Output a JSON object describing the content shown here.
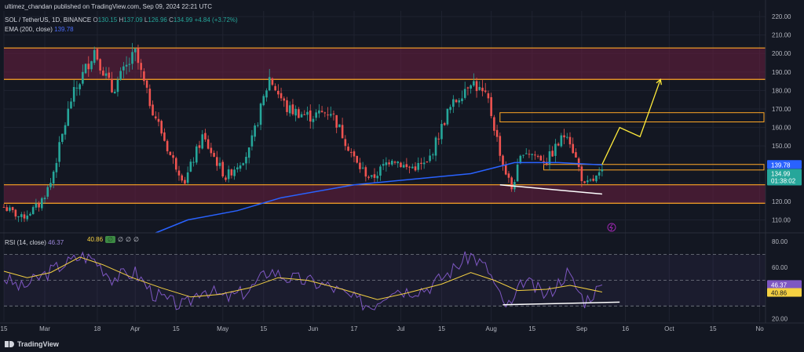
{
  "header": {
    "publisher": "ultimez_chandan published on TradingView.com, Sep 09, 2024 22:21 UTC",
    "symbol": "SOL / TetherUS, 1D, BINANCE",
    "ohlc": {
      "o_label": "O",
      "o": "130.15",
      "h_label": "H",
      "h": "137.09",
      "l_label": "L",
      "l": "126.96",
      "c_label": "C",
      "c": "134.99",
      "change": "+4.84 (+3.72%)"
    },
    "ema_label": "EMA (200, close)",
    "ema_value": "139.78",
    "rsi_label": "RSI (14, close)",
    "rsi_value": "46.37",
    "rsi_ma_value": "40.86",
    "rsi_flags": [
      "∅",
      "∅",
      "∅",
      "∅"
    ]
  },
  "footer": {
    "brand": "TradingView"
  },
  "colors": {
    "background": "#131722",
    "up": "#26a69a",
    "down": "#ef5350",
    "ema": "#2962ff",
    "zone_fill": "#6b1f3f",
    "zone_line": "#ffa726",
    "rsi": "#7e57c2",
    "rsi_ma": "#f5d142",
    "projection": "#ffeb3b",
    "trendline": "#ffffff"
  },
  "chart_data": {
    "type": "candlestick",
    "price_axis": {
      "ticks": [
        "220.00",
        "210.00",
        "200.00",
        "190.00",
        "180.00",
        "170.00",
        "160.00",
        "150.00",
        "140.00",
        "130.00",
        "120.00",
        "110.00"
      ],
      "ylim": [
        103,
        223
      ],
      "ema_label": "139.78",
      "price_label": "134.99",
      "countdown": "01:38:02"
    },
    "rsi_axis": {
      "ticks": [
        "80.00",
        "60.00",
        "20.00"
      ],
      "ylim": [
        18,
        85
      ],
      "rsi_label": "46.37",
      "ma_label": "40.86",
      "upper_band": 70,
      "middle_band": 50,
      "lower_band": 30
    },
    "x_axis": {
      "ticks": [
        "15",
        "Mar",
        "18",
        "Apr",
        "15",
        "May",
        "15",
        "Jun",
        "17",
        "Jul",
        "15",
        "Aug",
        "15",
        "Sep",
        "16",
        "Oct",
        "15",
        "No"
      ],
      "tick_days": [
        0,
        14,
        32,
        45,
        59,
        75,
        89,
        106,
        120,
        136,
        150,
        167,
        181,
        198,
        213,
        228,
        243,
        259
      ]
    },
    "zones": [
      {
        "low": 186,
        "high": 203
      },
      {
        "low": 119,
        "high": 129
      },
      {
        "low": 163,
        "high": 168,
        "start_day": 170,
        "border_only": true
      },
      {
        "low": 137,
        "high": 140,
        "start_day": 185,
        "border_only": true
      }
    ],
    "key_points": [
      {
        "day": 0,
        "value": 117
      },
      {
        "day": 6,
        "value": 111
      },
      {
        "day": 12,
        "value": 118
      },
      {
        "day": 16,
        "value": 130
      },
      {
        "day": 23,
        "value": 175
      },
      {
        "day": 31,
        "value": 202
      },
      {
        "day": 37,
        "value": 180
      },
      {
        "day": 45,
        "value": 200
      },
      {
        "day": 49,
        "value": 178
      },
      {
        "day": 57,
        "value": 145
      },
      {
        "day": 62,
        "value": 131
      },
      {
        "day": 68,
        "value": 155
      },
      {
        "day": 76,
        "value": 133
      },
      {
        "day": 84,
        "value": 147
      },
      {
        "day": 91,
        "value": 187
      },
      {
        "day": 97,
        "value": 170
      },
      {
        "day": 105,
        "value": 166
      },
      {
        "day": 112,
        "value": 169
      },
      {
        "day": 121,
        "value": 140
      },
      {
        "day": 126,
        "value": 132
      },
      {
        "day": 133,
        "value": 144
      },
      {
        "day": 138,
        "value": 138
      },
      {
        "day": 145,
        "value": 140
      },
      {
        "day": 152,
        "value": 168
      },
      {
        "day": 160,
        "value": 186
      },
      {
        "day": 166,
        "value": 174
      },
      {
        "day": 171,
        "value": 140
      },
      {
        "day": 174,
        "value": 127
      },
      {
        "day": 178,
        "value": 148
      },
      {
        "day": 186,
        "value": 142
      },
      {
        "day": 193,
        "value": 158
      },
      {
        "day": 199,
        "value": 128
      },
      {
        "day": 205,
        "value": 135
      }
    ],
    "ema_points": [
      {
        "day": 52,
        "value": 103
      },
      {
        "day": 63,
        "value": 110
      },
      {
        "day": 80,
        "value": 115
      },
      {
        "day": 95,
        "value": 122
      },
      {
        "day": 120,
        "value": 129
      },
      {
        "day": 140,
        "value": 132
      },
      {
        "day": 160,
        "value": 135
      },
      {
        "day": 175,
        "value": 141
      },
      {
        "day": 190,
        "value": 141
      },
      {
        "day": 205,
        "value": 139.78
      }
    ],
    "rsi_points": [
      {
        "day": 0,
        "value": 52
      },
      {
        "day": 6,
        "value": 44
      },
      {
        "day": 12,
        "value": 52
      },
      {
        "day": 20,
        "value": 62
      },
      {
        "day": 27,
        "value": 69
      },
      {
        "day": 31,
        "value": 66
      },
      {
        "day": 37,
        "value": 52
      },
      {
        "day": 45,
        "value": 56
      },
      {
        "day": 51,
        "value": 40
      },
      {
        "day": 57,
        "value": 33
      },
      {
        "day": 62,
        "value": 30
      },
      {
        "day": 68,
        "value": 44
      },
      {
        "day": 76,
        "value": 36
      },
      {
        "day": 84,
        "value": 42
      },
      {
        "day": 91,
        "value": 58
      },
      {
        "day": 97,
        "value": 52
      },
      {
        "day": 105,
        "value": 49
      },
      {
        "day": 112,
        "value": 45
      },
      {
        "day": 121,
        "value": 34
      },
      {
        "day": 126,
        "value": 30
      },
      {
        "day": 133,
        "value": 44
      },
      {
        "day": 138,
        "value": 42
      },
      {
        "day": 145,
        "value": 44
      },
      {
        "day": 152,
        "value": 55
      },
      {
        "day": 160,
        "value": 70
      },
      {
        "day": 166,
        "value": 58
      },
      {
        "day": 171,
        "value": 32
      },
      {
        "day": 174,
        "value": 30
      },
      {
        "day": 178,
        "value": 50
      },
      {
        "day": 186,
        "value": 38
      },
      {
        "day": 193,
        "value": 56
      },
      {
        "day": 199,
        "value": 34
      },
      {
        "day": 205,
        "value": 46.37
      }
    ],
    "rsi_ma_points": [
      {
        "day": 0,
        "value": 57
      },
      {
        "day": 8,
        "value": 52
      },
      {
        "day": 16,
        "value": 56
      },
      {
        "day": 26,
        "value": 68
      },
      {
        "day": 34,
        "value": 62
      },
      {
        "day": 44,
        "value": 52
      },
      {
        "day": 54,
        "value": 44
      },
      {
        "day": 64,
        "value": 37
      },
      {
        "day": 74,
        "value": 39
      },
      {
        "day": 84,
        "value": 44
      },
      {
        "day": 94,
        "value": 52
      },
      {
        "day": 104,
        "value": 50
      },
      {
        "day": 116,
        "value": 43
      },
      {
        "day": 128,
        "value": 35
      },
      {
        "day": 138,
        "value": 40
      },
      {
        "day": 150,
        "value": 47
      },
      {
        "day": 160,
        "value": 56
      },
      {
        "day": 168,
        "value": 50
      },
      {
        "day": 176,
        "value": 42
      },
      {
        "day": 186,
        "value": 43
      },
      {
        "day": 194,
        "value": 46
      },
      {
        "day": 205,
        "value": 40.86
      }
    ],
    "projection": [
      {
        "day": 205,
        "value": 140
      },
      {
        "day": 211,
        "value": 160
      },
      {
        "day": 218,
        "value": 155
      },
      {
        "day": 225,
        "value": 186
      }
    ],
    "price_trendline": [
      {
        "day": 170,
        "value": 129
      },
      {
        "day": 205,
        "value": 124
      }
    ],
    "rsi_trendline": [
      {
        "day": 171,
        "value": 31
      },
      {
        "day": 211,
        "value": 33
      }
    ]
  }
}
